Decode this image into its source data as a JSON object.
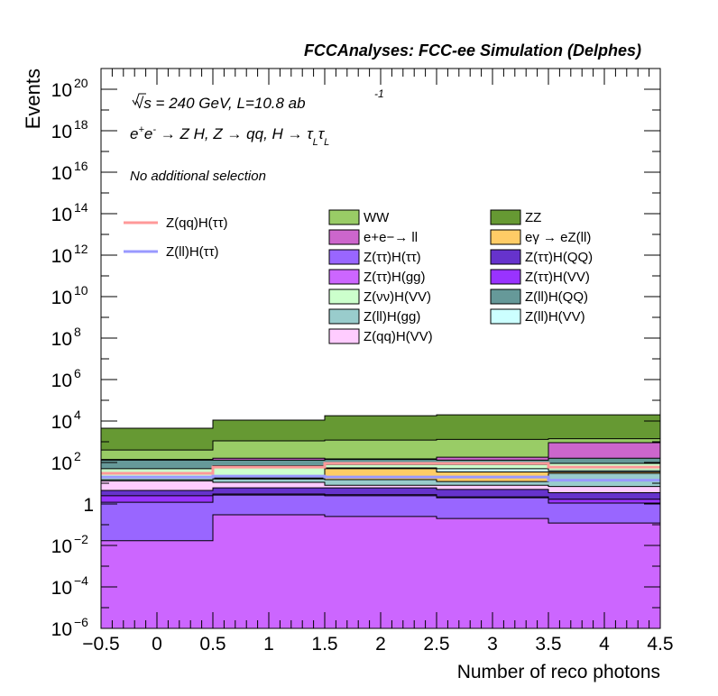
{
  "header": {
    "title": "FCCAnalyses: FCC-ee Simulation (Delphes)"
  },
  "annotations": {
    "line1": "√s = 240 GeV, L=10.8 ab",
    "line1_exp": "-1",
    "line2_a": "e",
    "line2_b": " → Z H, Z  → qq, H  → τ",
    "line2_tau_sub": "L",
    "line3": "No additional selection"
  },
  "chart_data": {
    "type": "stacked-step-histogram",
    "title": "",
    "xlabel": "Number of reco photons",
    "ylabel": "Events",
    "xlim": [
      -0.5,
      4.5
    ],
    "ylim": [
      1e-06,
      1e+21
    ],
    "yscale": "log",
    "x_bins": [
      0,
      1,
      2,
      3,
      4
    ],
    "x_ticks": [
      "−0.5",
      "0",
      "0.5",
      "1",
      "1.5",
      "2",
      "2.5",
      "3",
      "3.5",
      "4",
      "4.5"
    ],
    "y_ticks": [
      {
        "base": "10",
        "exp": "−6"
      },
      {
        "base": "10",
        "exp": "−4"
      },
      {
        "base": "10",
        "exp": "−2"
      },
      {
        "base": "1",
        "exp": ""
      },
      {
        "base": "10",
        "exp": "2"
      },
      {
        "base": "10",
        "exp": "4"
      },
      {
        "base": "10",
        "exp": "6"
      },
      {
        "base": "10",
        "exp": "8"
      },
      {
        "base": "10",
        "exp": "10"
      },
      {
        "base": "10",
        "exp": "12"
      },
      {
        "base": "10",
        "exp": "14"
      },
      {
        "base": "10",
        "exp": "16"
      },
      {
        "base": "10",
        "exp": "18"
      },
      {
        "base": "10",
        "exp": "20"
      }
    ],
    "stack_cumulative_tops": [
      {
        "name": "Z(ττ)H(gg)",
        "color": "#cc66ff",
        "values": [
          0.017,
          0.3,
          0.25,
          0.2,
          0.12
        ]
      },
      {
        "name": "Z(ττ)H(ττ)",
        "color": "#9966ff",
        "values": [
          1.2,
          2.7,
          2.5,
          2.0,
          1.1
        ]
      },
      {
        "name": "Z(ττ)H(VV)",
        "color": "#9933ff",
        "values": [
          2.5,
          3.0,
          2.8,
          2.2,
          1.7
        ]
      },
      {
        "name": "Z(ττ)H(QQ)",
        "color": "#6633cc",
        "values": [
          4.5,
          6.0,
          6.0,
          5.0,
          3.5
        ]
      },
      {
        "name": "Z(qq)H(VV)",
        "color": "#ffccff",
        "values": [
          13,
          11,
          8,
          8,
          7
        ]
      },
      {
        "name": "Z(ll)H(gg)",
        "color": "#99cccc",
        "values": [
          15,
          16,
          15,
          12,
          30
        ]
      },
      {
        "name": "eγ → eZ(ll)",
        "color": "#ffcc66",
        "values": [
          15,
          17,
          50,
          35,
          35
        ]
      },
      {
        "name": "Z(ll)H(VV)",
        "color": "#ccffff",
        "values": [
          20,
          18,
          55,
          50,
          40
        ]
      },
      {
        "name": "Z(νν)H(VV)",
        "color": "#ccffcc",
        "values": [
          50,
          70,
          80,
          80,
          90
        ]
      },
      {
        "name": "Z(ll)H(QQ)",
        "color": "#669999",
        "values": [
          130,
          130,
          140,
          130,
          160
        ]
      },
      {
        "name": "e+e−→ ll",
        "color": "#cc66cc",
        "values": [
          140,
          160,
          150,
          180,
          900
        ]
      },
      {
        "name": "WW",
        "color": "#99cc66",
        "values": [
          400,
          1100,
          1200,
          1300,
          1400
        ]
      },
      {
        "name": "ZZ",
        "color": "#669933",
        "values": [
          4500,
          11000,
          18000,
          20000,
          20000
        ]
      }
    ],
    "overlay_lines": [
      {
        "name": "Z(qq)H(ττ)",
        "color": "#ff9999",
        "values": [
          30,
          60,
          90,
          90,
          60
        ]
      },
      {
        "name": "Z(ll)H(ττ)",
        "color": "#9999ff",
        "values": [
          20,
          22,
          20,
          20,
          14
        ]
      }
    ],
    "legend": {
      "lines": [
        "Z(qq)H(ττ)",
        "Z(ll)H(ττ)"
      ],
      "fills": [
        {
          "name": "WW",
          "color": "#99cc66"
        },
        {
          "name": "ZZ",
          "color": "#669933"
        },
        {
          "name": "e+e−→ ll",
          "color": "#cc66cc"
        },
        {
          "name": "eγ → eZ(ll)",
          "color": "#ffcc66"
        },
        {
          "name": "Z(ττ)H(ττ)",
          "color": "#9966ff"
        },
        {
          "name": "Z(ττ)H(QQ)",
          "color": "#6633cc"
        },
        {
          "name": "Z(ττ)H(gg)",
          "color": "#cc66ff"
        },
        {
          "name": "Z(ττ)H(VV)",
          "color": "#9933ff"
        },
        {
          "name": "Z(νν)H(VV)",
          "color": "#ccffcc"
        },
        {
          "name": "Z(ll)H(QQ)",
          "color": "#669999"
        },
        {
          "name": "Z(ll)H(gg)",
          "color": "#99cccc"
        },
        {
          "name": "Z(ll)H(VV)",
          "color": "#ccffff"
        },
        {
          "name": "Z(qq)H(VV)",
          "color": "#ffccff"
        }
      ]
    }
  }
}
